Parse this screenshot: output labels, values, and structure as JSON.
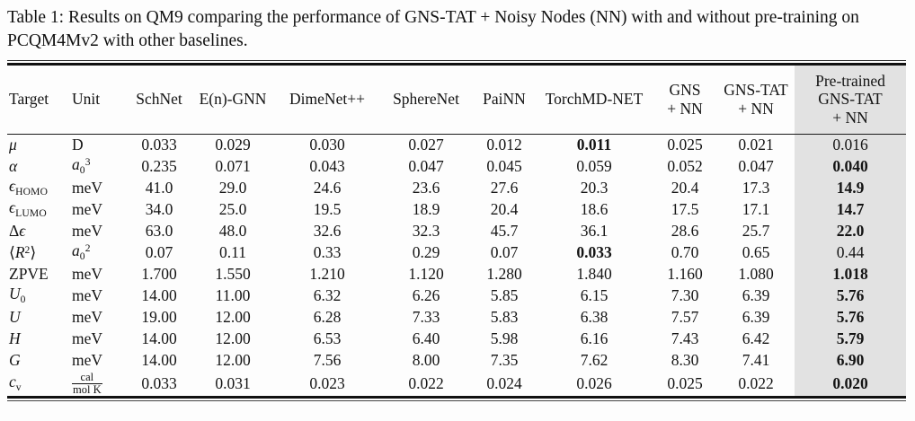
{
  "caption": "Table 1: Results on QM9 comparing the performance of GNS-TAT + Noisy Nodes (NN) with and without pre-training on PCQM4Mv2 with other baselines.",
  "colors": {
    "highlight_column": "#e2e2e2",
    "text": "#141414",
    "background": "#fdfdfd",
    "rule": "#111111"
  },
  "table": {
    "columns": [
      {
        "id": "target",
        "label_lines": [
          "Target"
        ],
        "align": "left"
      },
      {
        "id": "unit",
        "label_lines": [
          "Unit"
        ],
        "align": "left"
      },
      {
        "id": "schnet",
        "label_lines": [
          "SchNet"
        ]
      },
      {
        "id": "en-gnn",
        "label_lines": [
          "E(n)-GNN"
        ]
      },
      {
        "id": "dimenet",
        "label_lines": [
          "DimeNet++"
        ]
      },
      {
        "id": "spherenet",
        "label_lines": [
          "SphereNet"
        ]
      },
      {
        "id": "painn",
        "label_lines": [
          "PaiNN"
        ]
      },
      {
        "id": "torchmd-net",
        "label_lines": [
          "TorchMD-NET"
        ]
      },
      {
        "id": "gns-nn",
        "label_lines": [
          "GNS",
          "+ NN"
        ]
      },
      {
        "id": "gns-tat-nn",
        "label_lines": [
          "GNS-TAT",
          "+ NN"
        ]
      },
      {
        "id": "pretrained-gns-tat-nn",
        "label_lines": [
          "Pre-trained",
          "GNS-TAT",
          "+ NN"
        ],
        "highlight": true
      }
    ],
    "rows": [
      {
        "target_html": "<i>μ</i>",
        "unit_html": "D",
        "values": [
          "0.033",
          "0.029",
          "0.030",
          "0.027",
          "0.012",
          "0.011",
          "0.025",
          "0.021",
          "0.016"
        ],
        "bold": [
          5
        ]
      },
      {
        "target_html": "<i>α</i>",
        "unit_html": "<i>a</i><sub>0</sub><sup>3</sup>",
        "values": [
          "0.235",
          "0.071",
          "0.043",
          "0.047",
          "0.045",
          "0.059",
          "0.052",
          "0.047",
          "0.040"
        ],
        "bold": [
          8
        ]
      },
      {
        "target_html": "<i>ϵ</i><sub>HOMO</sub>",
        "unit_html": "meV",
        "values": [
          "41.0",
          "29.0",
          "24.6",
          "23.6",
          "27.6",
          "20.3",
          "20.4",
          "17.3",
          "14.9"
        ],
        "bold": [
          8
        ]
      },
      {
        "target_html": "<i>ϵ</i><sub>LUMO</sub>",
        "unit_html": "meV",
        "values": [
          "34.0",
          "25.0",
          "19.5",
          "18.9",
          "20.4",
          "18.6",
          "17.5",
          "17.1",
          "14.7"
        ],
        "bold": [
          8
        ]
      },
      {
        "target_html": "Δ<i>ϵ</i>",
        "unit_html": "meV",
        "values": [
          "63.0",
          "48.0",
          "32.6",
          "32.3",
          "45.7",
          "36.1",
          "28.6",
          "25.7",
          "22.0"
        ],
        "bold": [
          8
        ]
      },
      {
        "target_html": "⟨<i>R</i><sup>2</sup>⟩",
        "unit_html": "<i>a</i><sub>0</sub><sup>2</sup>",
        "values": [
          "0.07",
          "0.11",
          "0.33",
          "0.29",
          "0.07",
          "0.033",
          "0.70",
          "0.65",
          "0.44"
        ],
        "bold": [
          5
        ]
      },
      {
        "target_html": "ZPVE",
        "unit_html": "meV",
        "values": [
          "1.700",
          "1.550",
          "1.210",
          "1.120",
          "1.280",
          "1.840",
          "1.160",
          "1.080",
          "1.018"
        ],
        "bold": [
          8
        ]
      },
      {
        "target_html": "<i>U</i><sub>0</sub>",
        "unit_html": "meV",
        "values": [
          "14.00",
          "11.00",
          "6.32",
          "6.26",
          "5.85",
          "6.15",
          "7.30",
          "6.39",
          "5.76"
        ],
        "bold": [
          8
        ]
      },
      {
        "target_html": "<i>U</i>",
        "unit_html": "meV",
        "values": [
          "19.00",
          "12.00",
          "6.28",
          "7.33",
          "5.83",
          "6.38",
          "7.57",
          "6.39",
          "5.76"
        ],
        "bold": [
          8
        ]
      },
      {
        "target_html": "<i>H</i>",
        "unit_html": "meV",
        "values": [
          "14.00",
          "12.00",
          "6.53",
          "6.40",
          "5.98",
          "6.16",
          "7.43",
          "6.42",
          "5.79"
        ],
        "bold": [
          8
        ]
      },
      {
        "target_html": "<i>G</i>",
        "unit_html": "meV",
        "values": [
          "14.00",
          "12.00",
          "7.56",
          "8.00",
          "7.35",
          "7.62",
          "8.30",
          "7.41",
          "6.90"
        ],
        "bold": [
          8
        ]
      },
      {
        "target_html": "<i>c</i><sub>v</sub>",
        "unit_html": "<span class=\"frac\"><span class=\"num\">cal</span><span class=\"den\">mol K</span></span>",
        "values": [
          "0.033",
          "0.031",
          "0.023",
          "0.022",
          "0.024",
          "0.026",
          "0.025",
          "0.022",
          "0.020"
        ],
        "bold": [
          8
        ]
      }
    ]
  }
}
